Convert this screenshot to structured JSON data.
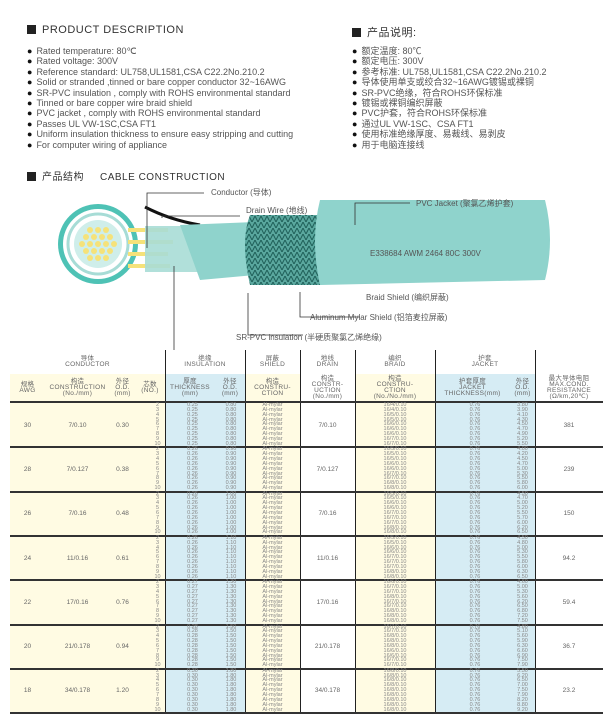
{
  "desc_en": {
    "title": "PRODUCT DESCRIPTION",
    "items": [
      "Rated temperature: 80℃",
      "Rated voltage: 300V",
      "Reference standard: UL758,UL1581,CSA C22.2No.210.2",
      "Solid or stranded ,tinned or bare copper conductor 32~16AWG",
      "SR-PVC insulation , comply with ROHS environmental standard",
      "Tinned or bare copper wire braid shield",
      "PVC jacket , comply with ROHS environmental standard",
      "Passes UL VW-1SC,CSA FT1",
      "Uniform insulation thickness to ensure easy stripping and cutting",
      "For computer wiring of appliance"
    ]
  },
  "desc_cn": {
    "title": "产品说明:",
    "items": [
      "额定温度: 80℃",
      "额定电压: 300V",
      "参考标准: UL758,UL1581,CSA C22.2No.210.2",
      "导体使用单支或绞合32~16AWG镀锡或裸铜",
      "SR-PVC绝缘，符合ROHS环保标准",
      "镀锡或裸铜编织屏蔽",
      "PVC护套，符合ROHS环保标准",
      "通过UL VW-1SC、CSA FT1",
      "使用标准绝缘厚度、易裁线、易剥皮",
      "用于电脑连接线"
    ]
  },
  "construction": {
    "title_cn": "产品结构",
    "title_en": "CABLE CONSTRUCTION",
    "labels": {
      "conductor": "Conductor (导体)",
      "drain": "Drain Wire (地线)",
      "jacket": "PVC Jacket (聚氯乙烯护套)",
      "braid": "Braid Shield (编织屏蔽)",
      "mylar": "Aluminum Mylar Shield (铝箔麦拉屏蔽)",
      "insulation": "SR-PVC insulation (半硬质聚氯乙烯绝缘)"
    },
    "print": "E338684  AWM 2464 80C 300V",
    "colors": {
      "cable": "#8fd3cc",
      "conductor": "#f5e27a",
      "braid": "#3d8f86"
    }
  },
  "table": {
    "groups": {
      "conductor": "导体\nCONDUCTOR",
      "insulation": "绝缘\nINSULATION",
      "shield": "屏蔽\nSHIELD",
      "drain": "地线\nDRAIN",
      "braid": "编织\nBRAID",
      "jacket": "护套\nJACKET"
    },
    "cols": {
      "awg": "规格\nAWG",
      "cons": "构造\nCONSTRUCTION\n(No./mm)",
      "od": "外径\nO.D.\n(mm)",
      "cores": "芯数\n(NO.)",
      "ins_t": "厚度\nTHICKNESS\n(mm)",
      "ins_od": "外径\nO.D.\n(mm)",
      "shield": "构造\nCONSTRU-\nCTION",
      "drain": "构造\nCONSTR-\nUCTION\n(No./mm)",
      "braid": "构造\nCONSTRU-\nCTION\n(No./No./mm)",
      "jk_t": "护套厚度\nJACKET\nTHICKNESS(mm)",
      "jk_od": "外径\nO.D.\n(mm)",
      "res": "最大导体电阻\nMAX.COND.\nRESISTANCE\n(Ω/km,20℃)"
    },
    "cores": [
      "2",
      "3",
      "4",
      "5",
      "6",
      "7",
      "8",
      "9",
      "10"
    ],
    "shield_value": "Al-mylar",
    "rows": [
      {
        "awg": "30",
        "cons": "7/0.10",
        "od": "0.30",
        "ins_t": "0.25",
        "ins_od": "0.80",
        "drain": "7/0.10",
        "braid": [
          "16/4/0.10",
          "16/4/0.10",
          "16/5/0.10",
          "16/5/0.10",
          "16/6/0.10",
          "16/6/0.10",
          "16/6/0.10",
          "16/7/0.10",
          "16/7/0.10"
        ],
        "jk_t": "0.76",
        "jk_od": [
          "3.80",
          "3.90",
          "4.10",
          "4.30",
          "4.50",
          "4.70",
          "4.90",
          "5.20",
          "5.50"
        ],
        "res": "381"
      },
      {
        "awg": "28",
        "cons": "7/0.127",
        "od": "0.38",
        "ins_t": "0.26",
        "ins_od": "0.90",
        "drain": "7/0.127",
        "braid": [
          "16/5/0.10",
          "16/5/0.10",
          "16/5/0.10",
          "16/6/0.10",
          "16/6/0.10",
          "16/7/0.10",
          "16/7/0.10",
          "16/8/0.10",
          "16/8/0.10"
        ],
        "jk_t": "0.76",
        "jk_od": [
          "4.00",
          "4.20",
          "4.50",
          "4.70",
          "5.00",
          "5.30",
          "5.50",
          "5.80",
          "6.00"
        ],
        "res": "239"
      },
      {
        "awg": "26",
        "cons": "7/0.16",
        "od": "0.48",
        "ins_t": "0.26",
        "ins_od": "1.00",
        "drain": "7/0.16",
        "braid": [
          "16/5/0.10",
          "16/5/0.10",
          "16/6/0.10",
          "16/6/0.10",
          "16/7/0.10",
          "16/7/0.10",
          "16/7/0.10",
          "16/8/0.10",
          "16/8/0.10"
        ],
        "jk_t": "0.76",
        "jk_od": [
          "4.50",
          "4.70",
          "5.00",
          "5.20",
          "5.50",
          "5.70",
          "6.00",
          "6.20",
          "6.50"
        ],
        "res": "150"
      },
      {
        "awg": "24",
        "cons": "11/0.16",
        "od": "0.61",
        "ins_t": "0.26",
        "ins_od": "1.10",
        "drain": "11/0.16",
        "braid": [
          "16/5/0.10",
          "16/5/0.10",
          "16/6/0.10",
          "16/6/0.10",
          "16/7/0.10",
          "16/7/0.10",
          "16/7/0.10",
          "16/8/0.10",
          "16/8/0.10"
        ],
        "jk_t": "0.76",
        "jk_od": [
          "4.50",
          "4.80",
          "5.00",
          "5.30",
          "5.50",
          "5.80",
          "6.00",
          "6.30",
          "6.50"
        ],
        "res": "94.2"
      },
      {
        "awg": "22",
        "cons": "17/0.16",
        "od": "0.76",
        "ins_t": "0.27",
        "ins_od": "1.30",
        "drain": "17/0.16",
        "braid": [
          "16/6/0.10",
          "16/7/0.10",
          "16/7/0.10",
          "16/8/0.10",
          "16/7/0.10",
          "16/7/0.10",
          "16/8/0.10",
          "16/8/0.10",
          "16/8/0.10"
        ],
        "jk_t": "0.76",
        "jk_od": [
          "4.60",
          "5.00",
          "5.30",
          "5.60",
          "6.20",
          "6.50",
          "6.80",
          "7.20",
          "7.50"
        ],
        "res": "59.4"
      },
      {
        "awg": "20",
        "cons": "21/0.178",
        "od": "0.94",
        "ins_t": "0.28",
        "ins_od": "1.50",
        "drain": "21/0.178",
        "braid": [
          "16/7/0.10",
          "16/7/0.10",
          "16/8/0.10",
          "16/8/0.10",
          "16/8/0.10",
          "16/6/0.10",
          "16/6/0.10",
          "16/7/0.10",
          "16/7/0.10"
        ],
        "jk_t": "0.76",
        "jk_od": [
          "4.80",
          "5.10",
          "5.60",
          "5.90",
          "6.30",
          "6.60",
          "6.90",
          "7.50",
          "7.90"
        ],
        "res": "36.7"
      },
      {
        "awg": "18",
        "cons": "34/0.178",
        "od": "1.20",
        "ins_t": "0.30",
        "ins_od": "1.80",
        "drain": "34/0.178",
        "braid": [
          "16/8/0.10",
          "16/8/0.10",
          "16/8/0.10",
          "16/8/0.10",
          "16/8/0.10",
          "16/8/0.10",
          "16/8/0.10",
          "16/8/0.10",
          "16/8/0.10"
        ],
        "jk_t": "0.76",
        "jk_od": [
          "5.50",
          "6.20",
          "6.50",
          "7.00",
          "7.50",
          "7.90",
          "8.20",
          "8.80",
          "9.20"
        ],
        "res": "23.2"
      }
    ]
  }
}
